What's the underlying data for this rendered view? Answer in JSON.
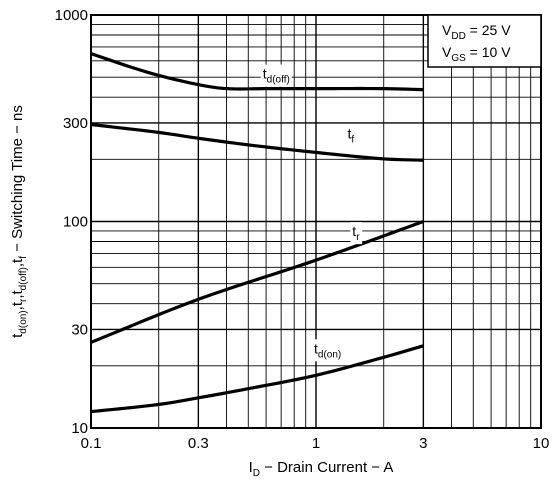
{
  "chart_data": {
    "type": "line",
    "title": "",
    "x_scale": "log",
    "y_scale": "log",
    "xlim": [
      0.1,
      10
    ],
    "ylim": [
      10,
      1000
    ],
    "grid": true,
    "x_ticks": [
      {
        "value": 0.1,
        "label": "0.1"
      },
      {
        "value": 0.3,
        "label": "0.3"
      },
      {
        "value": 1,
        "label": "1"
      },
      {
        "value": 3,
        "label": "3"
      },
      {
        "value": 10,
        "label": "10"
      }
    ],
    "y_ticks": [
      {
        "value": 10,
        "label": "10"
      },
      {
        "value": 30,
        "label": "30"
      },
      {
        "value": 100,
        "label": "100"
      },
      {
        "value": 300,
        "label": "300"
      },
      {
        "value": 1000,
        "label": "1000"
      }
    ],
    "xlabel": {
      "main": "I",
      "sub": "D",
      "rest": " − Drain Current − A"
    },
    "ylabel": {
      "parts": [
        {
          "t": "t"
        },
        {
          "t": "d(on)",
          "sub": true
        },
        {
          "t": ",t"
        },
        {
          "t": "r",
          "sub": true
        },
        {
          "t": ",t"
        },
        {
          "t": "d(off)",
          "sub": true
        },
        {
          "t": ",t"
        },
        {
          "t": "f",
          "sub": true
        },
        {
          "t": " − Switching Time − ns"
        }
      ]
    },
    "conditions": [
      {
        "main": "V",
        "sub": "DD",
        "rest": " = 25 V"
      },
      {
        "main": "V",
        "sub": "GS",
        "rest": " = 10 V"
      }
    ],
    "series": [
      {
        "name": "d(off)",
        "label_main": "t",
        "label_sub": "d(off)",
        "x": [
          0.1,
          0.15,
          0.2,
          0.3,
          0.4,
          0.6,
          1,
          2,
          3
        ],
        "y": [
          650,
          560,
          510,
          460,
          440,
          440,
          440,
          440,
          435
        ]
      },
      {
        "name": "f",
        "label_main": "t",
        "label_sub": "f",
        "x": [
          0.1,
          0.2,
          0.3,
          0.5,
          1,
          2,
          3
        ],
        "y": [
          295,
          270,
          253,
          235,
          216,
          201,
          198
        ]
      },
      {
        "name": "r",
        "label_main": "t",
        "label_sub": "r",
        "x": [
          0.1,
          0.3,
          1,
          3
        ],
        "y": [
          26,
          42,
          65,
          100
        ]
      },
      {
        "name": "d(on)",
        "label_main": "t",
        "label_sub": "d(on)",
        "x": [
          0.1,
          0.2,
          0.3,
          0.5,
          1,
          2,
          3
        ],
        "y": [
          12,
          13,
          14,
          15.5,
          18,
          22,
          25
        ]
      }
    ]
  }
}
